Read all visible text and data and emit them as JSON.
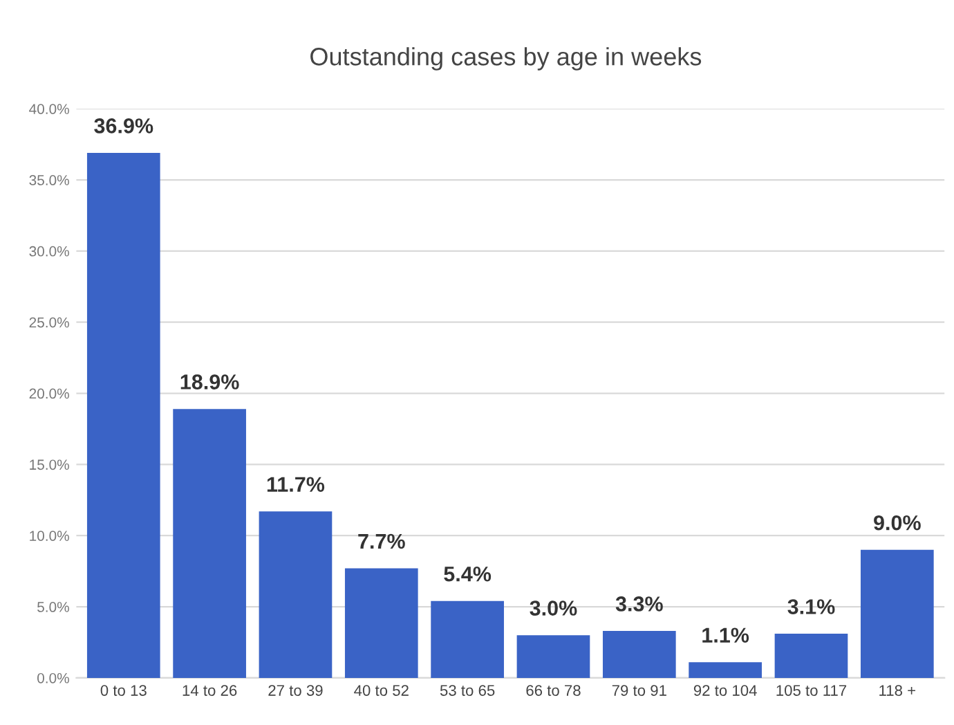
{
  "chart_data": {
    "type": "bar",
    "title": "Outstanding cases by age in weeks",
    "categories": [
      "0 to 13",
      "14 to 26",
      "27 to 39",
      "40 to 52",
      "53 to 65",
      "66 to 78",
      "79 to 91",
      "92 to 104",
      "105 to 117",
      "118 +"
    ],
    "values": [
      36.9,
      18.9,
      11.7,
      7.7,
      5.4,
      3.0,
      3.3,
      1.1,
      3.1,
      9.0
    ],
    "value_labels": [
      "36.9%",
      "18.9%",
      "11.7%",
      "7.7%",
      "5.4%",
      "3.0%",
      "3.3%",
      "1.1%",
      "3.1%",
      "9.0%"
    ],
    "color": "#3a63c6",
    "ylim": [
      0,
      40
    ],
    "yticks": [
      {
        "value": 0,
        "label": "0.0%"
      },
      {
        "value": 5,
        "label": "5.0%"
      },
      {
        "value": 10,
        "label": "10.0%"
      },
      {
        "value": 15,
        "label": "15.0%"
      },
      {
        "value": 20,
        "label": "20.0%"
      },
      {
        "value": 25,
        "label": "25.0%"
      },
      {
        "value": 30,
        "label": "30.0%"
      },
      {
        "value": 35,
        "label": "35.0%"
      },
      {
        "value": 40,
        "label": "40.0%"
      }
    ],
    "grid": "y",
    "legend": false
  }
}
